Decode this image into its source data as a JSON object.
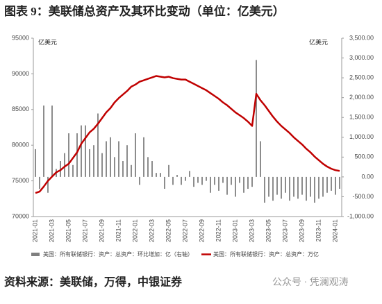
{
  "title": "图表 9：美联储总资产及其环比变动（单位：亿美元）",
  "source": "资料来源：美联储，万得，中银证券",
  "watermark": "公众号 · 凭澜观涛",
  "chart_data": {
    "type": "bar_line",
    "y_label": "亿美元",
    "y2_label": "亿美元",
    "categories": [
      "2021-01",
      null,
      null,
      null,
      "2021-03",
      null,
      null,
      null,
      "2021-05",
      null,
      null,
      null,
      "2021-07",
      null,
      null,
      null,
      "2021-09",
      null,
      null,
      null,
      "2021-11",
      null,
      null,
      null,
      "2022-01",
      null,
      null,
      null,
      "2022-03",
      null,
      null,
      null,
      "2022-05",
      null,
      null,
      null,
      "2022-07",
      null,
      null,
      null,
      "2022-09",
      null,
      null,
      null,
      "2022-11",
      null,
      null,
      null,
      "2023-01",
      null,
      null,
      null,
      "2023-03",
      null,
      null,
      null,
      "2023-05",
      null,
      null,
      null,
      "2023-07",
      null,
      null,
      null,
      "2023-09",
      null,
      null,
      null,
      "2023-11",
      null,
      null,
      null,
      "2024-01",
      null
    ],
    "ylim": [
      70000,
      95000
    ],
    "yticks": [
      70000,
      75000,
      80000,
      85000,
      90000,
      95000
    ],
    "y2lim": [
      -1000,
      3500
    ],
    "y2ticks": [
      {
        "value": -1000,
        "label": "-1,000.00"
      },
      {
        "value": -500,
        "label": "-500.00"
      },
      {
        "value": 0,
        "label": "0.00"
      },
      {
        "value": 500,
        "label": "500.00"
      },
      {
        "value": 1000,
        "label": "1,000.00"
      },
      {
        "value": 1500,
        "label": "1,500.00"
      },
      {
        "value": 2000,
        "label": "2,000.00"
      },
      {
        "value": 2500,
        "label": "2,500.00"
      },
      {
        "value": 3000,
        "label": "3,000.00"
      },
      {
        "value": 3500,
        "label": "3,500.00"
      }
    ],
    "series": [
      {
        "name": "美国：所有联储银行：资产：总资产：环比增加：亿（右轴）",
        "type": "bar",
        "axis": "y2",
        "color": "#7f7f7f",
        "values": [
          700,
          -300,
          1800,
          -400,
          1800,
          200,
          400,
          600,
          1100,
          300,
          1100,
          1300,
          1300,
          700,
          800,
          1600,
          600,
          900,
          1000,
          500,
          900,
          400,
          800,
          300,
          1100,
          -200,
          1000,
          500,
          400,
          100,
          100,
          -300,
          300,
          -200,
          50,
          -200,
          -100,
          150,
          -250,
          -150,
          -200,
          -100,
          -400,
          -200,
          -350,
          -150,
          -450,
          -200,
          -500,
          -150,
          -400,
          -300,
          -250,
          2950,
          900,
          -650,
          -500,
          -600,
          -450,
          -550,
          -400,
          -600,
          -500,
          -550,
          -450,
          -600,
          -500,
          -650,
          -550,
          -500,
          -400,
          -350,
          -450,
          -300
        ]
      },
      {
        "name": "美国：所有联储银行：资产：总资产：万亿",
        "type": "line",
        "color": "#c00000",
        "values": [
          73300,
          73500,
          74200,
          75000,
          75600,
          76200,
          76500,
          77000,
          77400,
          78200,
          79000,
          80200,
          81000,
          81800,
          82300,
          83000,
          83800,
          84600,
          85200,
          86000,
          86600,
          87100,
          87600,
          88200,
          88500,
          88900,
          89100,
          89300,
          89500,
          89700,
          89600,
          89500,
          89600,
          89400,
          89300,
          89200,
          89200,
          88900,
          88600,
          88300,
          88000,
          87700,
          87300,
          86900,
          86500,
          86000,
          85600,
          85100,
          84600,
          84200,
          83800,
          83300,
          82700,
          87200,
          86300,
          85600,
          84800,
          84000,
          83300,
          82700,
          82200,
          81700,
          81100,
          80600,
          80100,
          79500,
          79000,
          78400,
          77900,
          77400,
          77000,
          76700,
          76500,
          76400
        ]
      }
    ]
  }
}
